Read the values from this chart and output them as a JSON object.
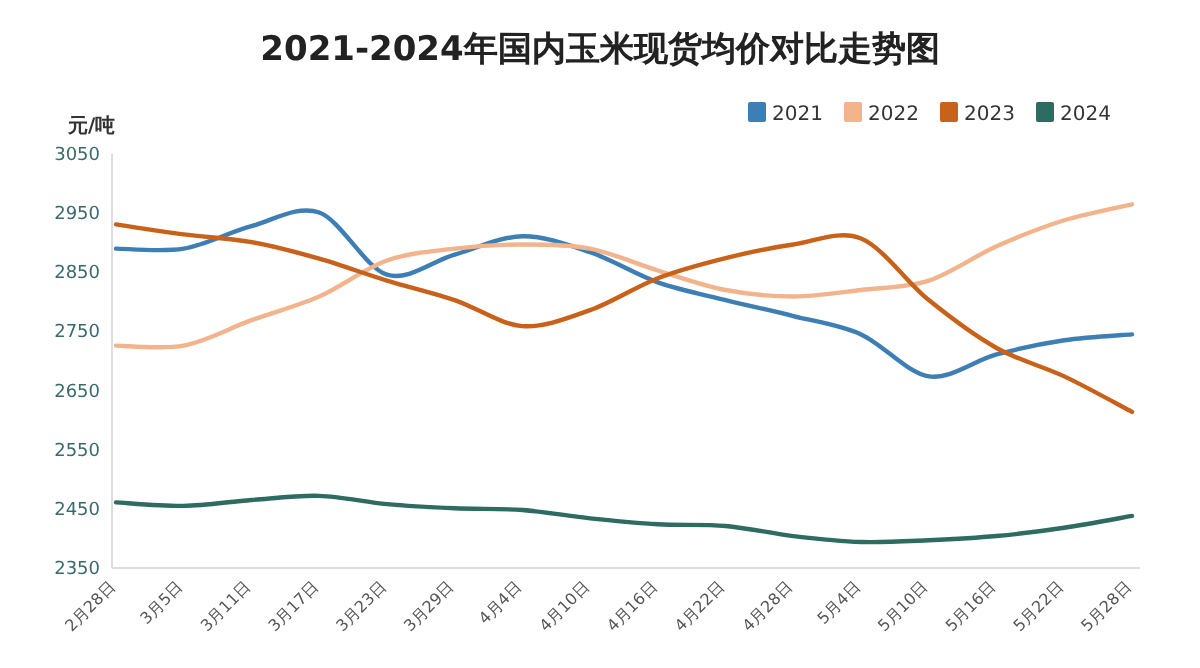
{
  "chart_data": {
    "type": "line",
    "title": "2021-2024年国内玉米现货均价对比走势图",
    "ylabel": "元/吨",
    "categories": [
      "2月28日",
      "3月5日",
      "3月11日",
      "3月17日",
      "3月23日",
      "3月29日",
      "4月4日",
      "4月10日",
      "4月16日",
      "4月22日",
      "4月28日",
      "5月4日",
      "5月10日",
      "5月16日",
      "5月22日",
      "5月28日"
    ],
    "series": [
      {
        "name": "2021",
        "color": "#3d7fb5",
        "values": [
          2890,
          2890,
          2928,
          2951,
          2846,
          2880,
          2911,
          2884,
          2833,
          2803,
          2776,
          2745,
          2674,
          2711,
          2735,
          2745
        ]
      },
      {
        "name": "2022",
        "color": "#f2b48c",
        "values": [
          2726,
          2726,
          2769,
          2809,
          2870,
          2890,
          2897,
          2890,
          2853,
          2820,
          2809,
          2820,
          2836,
          2894,
          2938,
          2965
        ]
      },
      {
        "name": "2023",
        "color": "#c8621a",
        "values": [
          2931,
          2914,
          2901,
          2873,
          2836,
          2803,
          2759,
          2786,
          2840,
          2874,
          2897,
          2907,
          2803,
          2722,
          2674,
          2614
        ]
      },
      {
        "name": "2024",
        "color": "#2e6b60",
        "values": [
          2461,
          2455,
          2465,
          2472,
          2458,
          2451,
          2448,
          2434,
          2424,
          2421,
          2404,
          2394,
          2397,
          2404,
          2418,
          2438
        ]
      }
    ],
    "ylim": [
      2350,
      3050
    ],
    "yticks": [
      2350,
      2450,
      2550,
      2650,
      2750,
      2850,
      2950,
      3050
    ],
    "legend": "top right"
  }
}
